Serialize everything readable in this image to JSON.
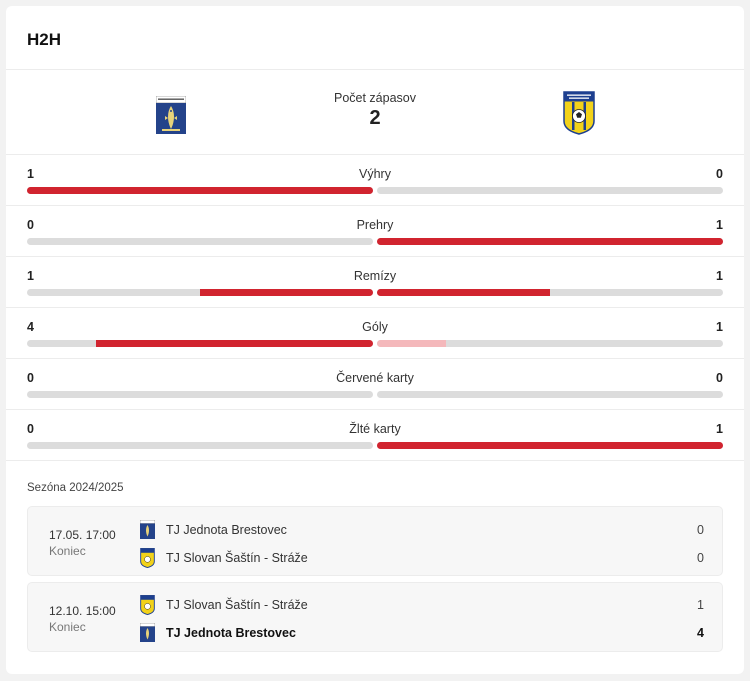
{
  "header": {
    "title": "H2H"
  },
  "teams": {
    "home": {
      "name": "TJ Jednota Brestovec",
      "crest": "fish-crest-icon",
      "crest_text": "OBEC BRESTOVEC"
    },
    "away": {
      "name": "TJ Slovan Šaštín - Stráže",
      "crest": "ball-crest-icon",
      "crest_text": "TJ SLOVAN ŠAŠTÍN"
    }
  },
  "summary": {
    "label": "Počet zápasov",
    "value": "2"
  },
  "stats": [
    {
      "label": "Výhry",
      "home": "1",
      "away": "0",
      "home_share": 1.0,
      "away_share": 0.0
    },
    {
      "label": "Prehry",
      "home": "0",
      "away": "1",
      "home_share": 0.0,
      "away_share": 1.0
    },
    {
      "label": "Remízy",
      "home": "1",
      "away": "1",
      "home_share": 0.5,
      "away_share": 0.5
    },
    {
      "label": "Góly",
      "home": "4",
      "away": "1",
      "home_share": 0.8,
      "away_share": 0.2
    },
    {
      "label": "Červené karty",
      "home": "0",
      "away": "0",
      "home_share": 0.0,
      "away_share": 0.0
    },
    {
      "label": "Žlté karty",
      "home": "0",
      "away": "1",
      "home_share": 0.0,
      "away_share": 1.0
    }
  ],
  "season": {
    "label": "Sezóna 2024/2025"
  },
  "matches": [
    {
      "date": "17.05. 17:00",
      "status": "Koniec",
      "team1": {
        "name": "TJ Jednota Brestovec",
        "score": "0",
        "winner": false,
        "crest": "fish-crest-icon"
      },
      "team2": {
        "name": "TJ Slovan Šaštín - Stráže",
        "score": "0",
        "winner": false,
        "crest": "ball-crest-icon"
      }
    },
    {
      "date": "12.10. 15:00",
      "status": "Koniec",
      "team1": {
        "name": "TJ Slovan Šaštín - Stráže",
        "score": "1",
        "winner": false,
        "crest": "ball-crest-icon"
      },
      "team2": {
        "name": "TJ Jednota Brestovec",
        "score": "4",
        "winner": true,
        "crest": "fish-crest-icon"
      }
    }
  ],
  "colors": {
    "accent": "#d1242f",
    "accent_light": "#f4b8bb",
    "track": "#dcdcdc"
  }
}
